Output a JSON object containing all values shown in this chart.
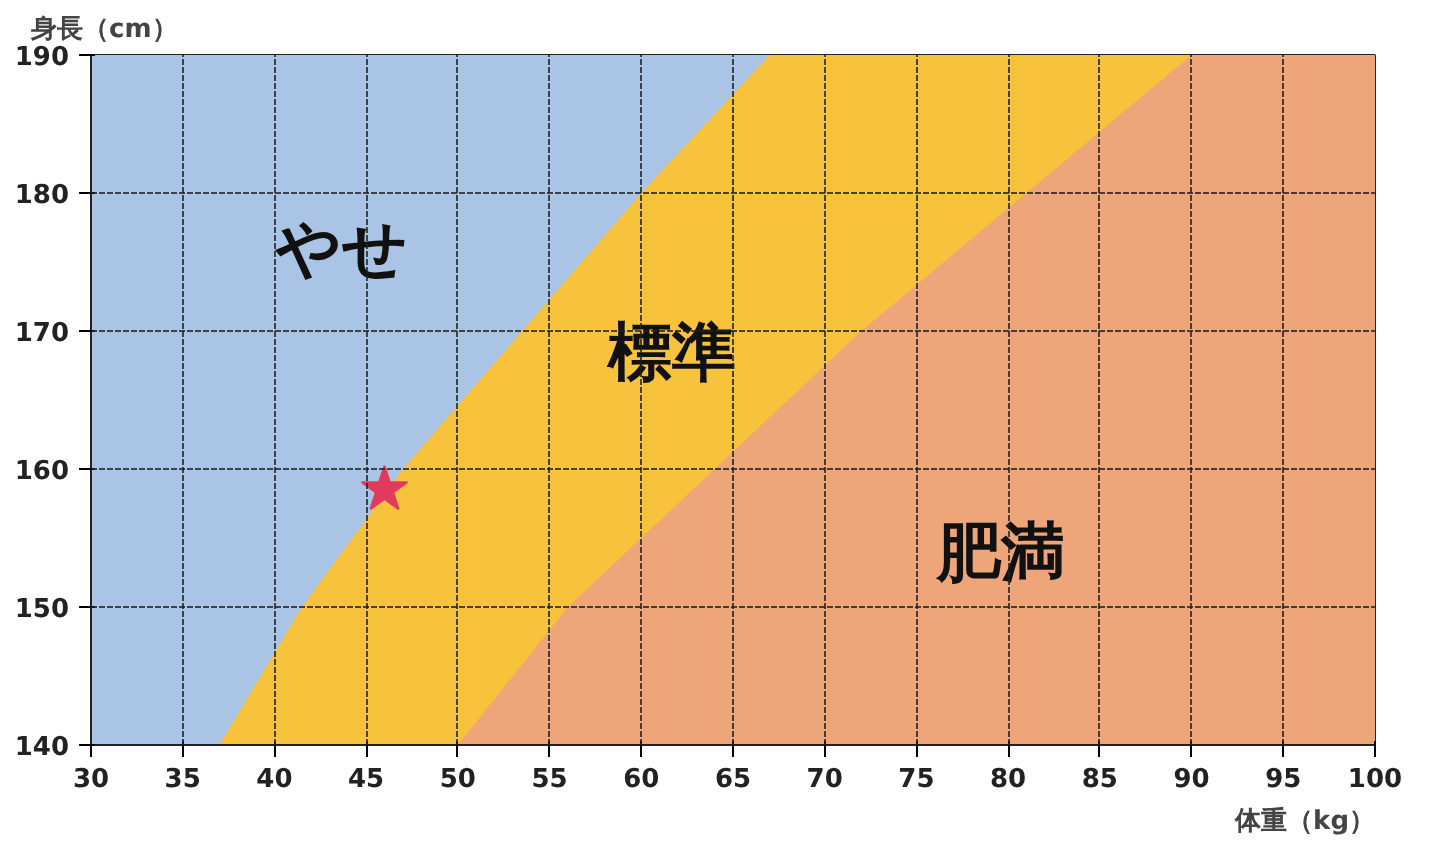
{
  "chart_data": {
    "type": "area",
    "xlabel": "体重（kg）",
    "ylabel": "身長（cm）",
    "xlim": [
      30,
      100
    ],
    "ylim": [
      140,
      190
    ],
    "xticks": [
      30,
      35,
      40,
      45,
      50,
      55,
      60,
      65,
      70,
      75,
      80,
      85,
      90,
      95,
      100
    ],
    "yticks": [
      140,
      150,
      160,
      170,
      180,
      190
    ],
    "grid": true,
    "series": [
      {
        "name": "やせ",
        "color": "#a9c4e4",
        "x": [
          30,
          100
        ],
        "values": [
          190,
          190
        ]
      },
      {
        "name": "標準",
        "color": "#f7c23c",
        "x": [
          37,
          41.5,
          47,
          53.5,
          60,
          67,
          100
        ],
        "values": [
          140,
          150,
          160,
          170,
          180,
          190,
          190
        ]
      },
      {
        "name": "肥満",
        "color": "#eea57a",
        "x": [
          50,
          56,
          64,
          72,
          81,
          90,
          100
        ],
        "values": [
          140,
          150,
          160,
          170,
          180,
          190,
          190
        ]
      },
      {
        "type": "scatter",
        "marker": "star",
        "color": "#e23a5c",
        "x": [
          46
        ],
        "values": [
          158.5
        ]
      }
    ]
  }
}
